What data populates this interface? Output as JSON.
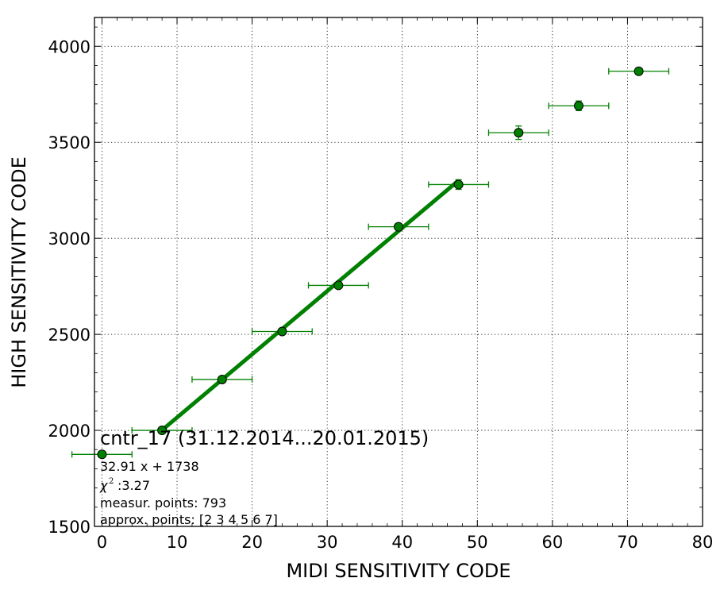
{
  "chart_data": {
    "type": "scatter",
    "title": "cntr_17 (31.12.2014...20.01.2015)",
    "xlabel": "MIDI SENSITIVITY CODE",
    "ylabel": "HIGH SENSITIVITY CODE",
    "xlim": [
      -1,
      80
    ],
    "ylim": [
      1500,
      4150
    ],
    "x_ticks": [
      0,
      10,
      20,
      30,
      40,
      50,
      60,
      70,
      80
    ],
    "y_ticks": [
      1500,
      2000,
      2500,
      3000,
      3500,
      4000
    ],
    "grid": true,
    "colors": {
      "points": "#008000",
      "fit_line": "#008000",
      "marker_edge": "#000000"
    },
    "series": [
      {
        "points": [
          {
            "x": 0,
            "y": 1875,
            "xerr": 4
          },
          {
            "x": 8,
            "y": 2000,
            "xerr": 4
          },
          {
            "x": 16,
            "y": 2265,
            "xerr": 4
          },
          {
            "x": 24,
            "y": 2515,
            "xerr": 4
          },
          {
            "x": 31.5,
            "y": 2755,
            "xerr": 4
          },
          {
            "x": 39.5,
            "y": 3060,
            "xerr": 4
          },
          {
            "x": 47.5,
            "y": 3280,
            "xerr": 4,
            "yerr": 25
          },
          {
            "x": 55.5,
            "y": 3550,
            "xerr": 4,
            "yerr": 35
          },
          {
            "x": 63.5,
            "y": 3690,
            "xerr": 4,
            "yerr": 25
          },
          {
            "x": 71.5,
            "y": 3870,
            "xerr": 4
          }
        ]
      }
    ],
    "fit": {
      "slope": 32.91,
      "intercept": 1738,
      "x_range": [
        8,
        47.5
      ]
    },
    "annotations": {
      "equation": "32.91 x + 1738",
      "chi2": ":3.27",
      "measur_points": "measur. points: 793",
      "approx_points": "approx. points: [2 3 4 5 6 7]"
    }
  }
}
